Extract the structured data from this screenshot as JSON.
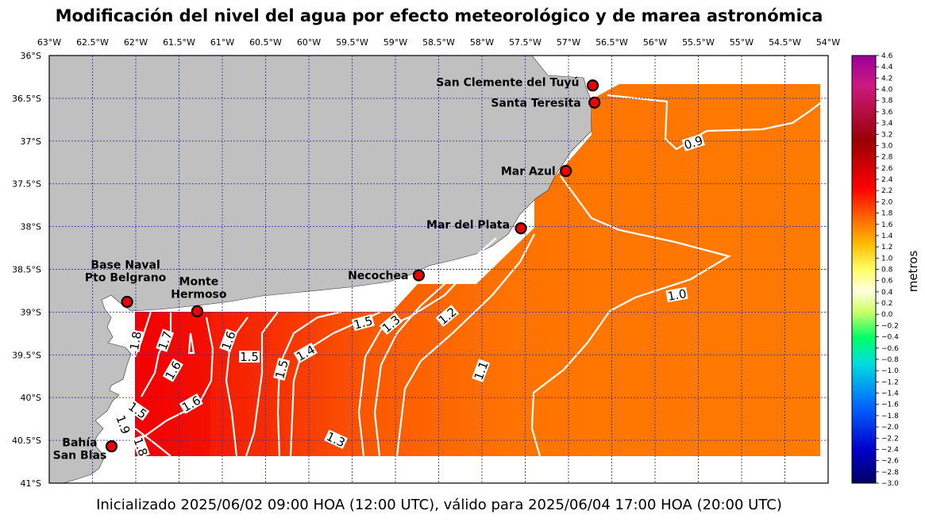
{
  "title": "Modificación del nivel del agua por efecto meteorológico y de marea astronómica",
  "footer": "Inicializado 2025/06/02 09:00 HOA (12:00 UTC), válido para 2025/06/04 17:00 HOA (20:00 UTC)",
  "map": {
    "lon_labels": [
      "63°W",
      "62.5°W",
      "62°W",
      "61.5°W",
      "61°W",
      "60.5°W",
      "60°W",
      "59.5°W",
      "59°W",
      "58.5°W",
      "58°W",
      "57.5°W",
      "57°W",
      "56.5°W",
      "56°W",
      "55.5°W",
      "55°W",
      "54.5°W",
      "54°W"
    ],
    "lat_labels": [
      "36°S",
      "36.5°S",
      "37°S",
      "37.5°S",
      "38°S",
      "38.5°S",
      "39°S",
      "39.5°S",
      "40°S",
      "40.5°S",
      "41°S"
    ],
    "stations": [
      {
        "name": "San Clemente del Tuyú",
        "lon": -56.72,
        "lat": -36.35
      },
      {
        "name": "Santa Teresita",
        "lon": -56.7,
        "lat": -36.55
      },
      {
        "name": "Mar Azul",
        "lon": -57.03,
        "lat": -37.35
      },
      {
        "name": "Mar del Plata",
        "lon": -57.55,
        "lat": -38.02
      },
      {
        "name": "Necochea",
        "lon": -58.73,
        "lat": -38.57
      },
      {
        "name": "Base Naval Pto Belgrano",
        "lon": -62.1,
        "lat": -38.88
      },
      {
        "name": "Monte Hermoso",
        "lon": -61.29,
        "lat": -38.99
      },
      {
        "name": "Bahía San Blas",
        "lon": -62.28,
        "lat": -40.57
      }
    ],
    "contour_labels": [
      "0.9",
      "1.0",
      "1.1",
      "1.2",
      "1.3",
      "1.5",
      "1.4",
      "1.5",
      "1.5",
      "1.6",
      "1.7",
      "1.8",
      "1.6",
      "1.6",
      "1.5",
      "1.9",
      "1.8",
      "1.3"
    ],
    "land_color": "#c0c0c0",
    "grid_color": "#3333aa"
  },
  "colorbar": {
    "label": "metros",
    "min": -3.0,
    "max": 4.6,
    "ticks": [
      "4.6",
      "4.4",
      "4.2",
      "4.0",
      "3.8",
      "3.6",
      "3.4",
      "3.2",
      "3.0",
      "2.8",
      "2.6",
      "2.4",
      "2.2",
      "2.0",
      "1.8",
      "1.6",
      "1.4",
      "1.2",
      "1.0",
      "0.8",
      "0.6",
      "0.4",
      "0.2",
      "0.0",
      "−0.2",
      "−0.4",
      "−0.6",
      "−0.8",
      "−1.0",
      "−1.2",
      "−1.4",
      "−1.6",
      "−1.8",
      "−2.0",
      "−2.2",
      "−2.4",
      "−2.6",
      "−2.8",
      "−3.0"
    ]
  }
}
